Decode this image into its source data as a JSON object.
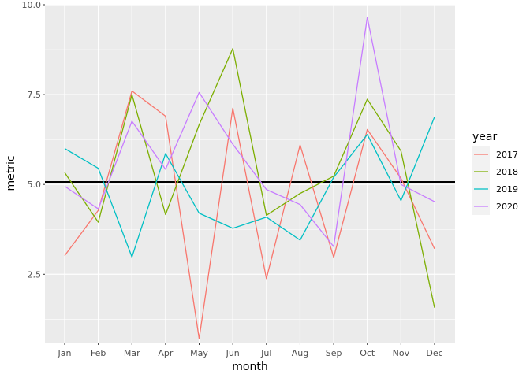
{
  "chart_data": {
    "type": "line",
    "xlabel": "month",
    "ylabel": "metric",
    "categories": [
      "Jan",
      "Feb",
      "Mar",
      "Apr",
      "May",
      "Jun",
      "Jul",
      "Aug",
      "Sep",
      "Oct",
      "Nov",
      "Dec"
    ],
    "ylim": [
      0.6,
      10.0
    ],
    "yticks": [
      2.5,
      5.0,
      7.5,
      10.0
    ],
    "ytick_labels": [
      "2.5",
      "5.0",
      "7.5",
      "10.0"
    ],
    "grid": true,
    "reference_line": {
      "y": 5.07,
      "color": "#000000"
    },
    "legend": {
      "title": "year",
      "position": "right"
    },
    "series": [
      {
        "name": "2017",
        "color": "#F8766D",
        "values": [
          3.02,
          4.28,
          7.6,
          6.9,
          0.71,
          7.12,
          2.38,
          6.1,
          2.97,
          6.53,
          5.17,
          3.21
        ]
      },
      {
        "name": "2018",
        "color": "#7CAE00",
        "values": [
          5.33,
          3.95,
          7.5,
          4.16,
          6.66,
          8.78,
          4.14,
          4.75,
          5.23,
          7.37,
          5.93,
          1.57
        ]
      },
      {
        "name": "2019",
        "color": "#00BFC4",
        "values": [
          6.0,
          5.45,
          2.98,
          5.86,
          4.2,
          3.78,
          4.09,
          3.45,
          5.2,
          6.39,
          4.55,
          6.88
        ]
      },
      {
        "name": "2020",
        "color": "#C77CFF",
        "values": [
          4.95,
          4.32,
          6.76,
          5.42,
          7.56,
          6.12,
          4.86,
          4.44,
          3.27,
          9.65,
          5.0,
          4.52
        ]
      }
    ]
  }
}
